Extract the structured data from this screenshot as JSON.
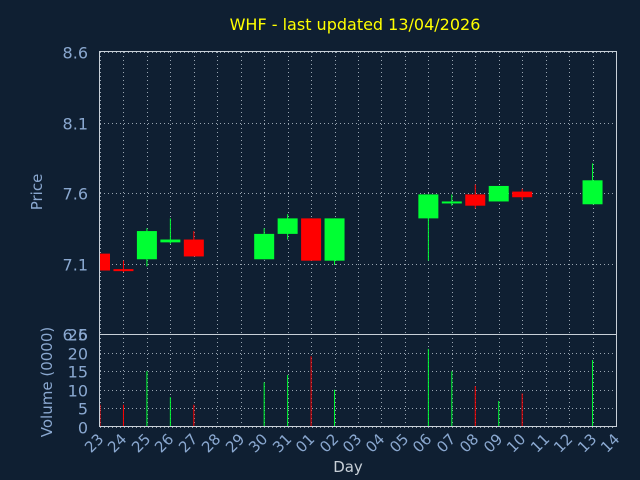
{
  "chart_data": {
    "type": "candlestick",
    "title": "WHF - last updated 13/04/2026",
    "xlabel": "Day",
    "ylabel_price": "Price",
    "ylabel_volume": "Volume (0000)",
    "price_ticks": [
      "8.6",
      "8.1",
      "7.6",
      "7.1",
      "6.6"
    ],
    "volume_ticks": [
      "25",
      "20",
      "15",
      "10",
      "5",
      "0"
    ],
    "price_ylim": [
      6.6,
      8.6
    ],
    "volume_ylim": [
      0,
      25
    ],
    "x_labels": [
      "23",
      "24",
      "25",
      "26",
      "27",
      "28",
      "29",
      "30",
      "31",
      "01",
      "02",
      "03",
      "04",
      "05",
      "06",
      "07",
      "08",
      "09",
      "10",
      "11",
      "12",
      "13",
      "14"
    ],
    "grid": true,
    "colors": {
      "background": "#0f1f32",
      "axis": "#c8d0d8",
      "grid": "#9aa6b2",
      "title": "#ffff00",
      "label": "#8aa8d0",
      "up": "#00ff33",
      "down": "#ff0000"
    },
    "candles": [
      {
        "day": "23",
        "open": 7.17,
        "close": 7.05,
        "high": 7.17,
        "low": 7.05,
        "volume": 6
      },
      {
        "day": "24",
        "open": 7.06,
        "close": 7.05,
        "high": 7.12,
        "low": 7.04,
        "volume": 6
      },
      {
        "day": "25",
        "open": 7.13,
        "close": 7.33,
        "high": 7.35,
        "low": 7.08,
        "volume": 15
      },
      {
        "day": "26",
        "open": 7.25,
        "close": 7.27,
        "high": 7.42,
        "low": 7.24,
        "volume": 8
      },
      {
        "day": "27",
        "open": 7.27,
        "close": 7.15,
        "high": 7.33,
        "low": 7.15,
        "volume": 6
      },
      {
        "day": "30",
        "open": 7.13,
        "close": 7.31,
        "high": 7.35,
        "low": 7.13,
        "volume": 12
      },
      {
        "day": "31",
        "open": 7.31,
        "close": 7.42,
        "high": 7.45,
        "low": 7.27,
        "volume": 14
      },
      {
        "day": "01",
        "open": 7.42,
        "close": 7.12,
        "high": 7.42,
        "low": 7.12,
        "volume": 19
      },
      {
        "day": "02",
        "open": 7.12,
        "close": 7.42,
        "high": 7.42,
        "low": 7.09,
        "volume": 10
      },
      {
        "day": "06",
        "open": 7.42,
        "close": 7.59,
        "high": 7.59,
        "low": 7.12,
        "volume": 21
      },
      {
        "day": "07",
        "open": 7.53,
        "close": 7.54,
        "high": 7.59,
        "low": 7.51,
        "volume": 15
      },
      {
        "day": "08",
        "open": 7.59,
        "close": 7.51,
        "high": 7.66,
        "low": 7.49,
        "volume": 11
      },
      {
        "day": "09",
        "open": 7.54,
        "close": 7.65,
        "high": 7.65,
        "low": 7.54,
        "volume": 7
      },
      {
        "day": "10",
        "open": 7.61,
        "close": 7.57,
        "high": 7.63,
        "low": 7.55,
        "volume": 9
      },
      {
        "day": "13",
        "open": 7.52,
        "close": 7.69,
        "high": 7.81,
        "low": 7.52,
        "volume": 18
      }
    ]
  }
}
